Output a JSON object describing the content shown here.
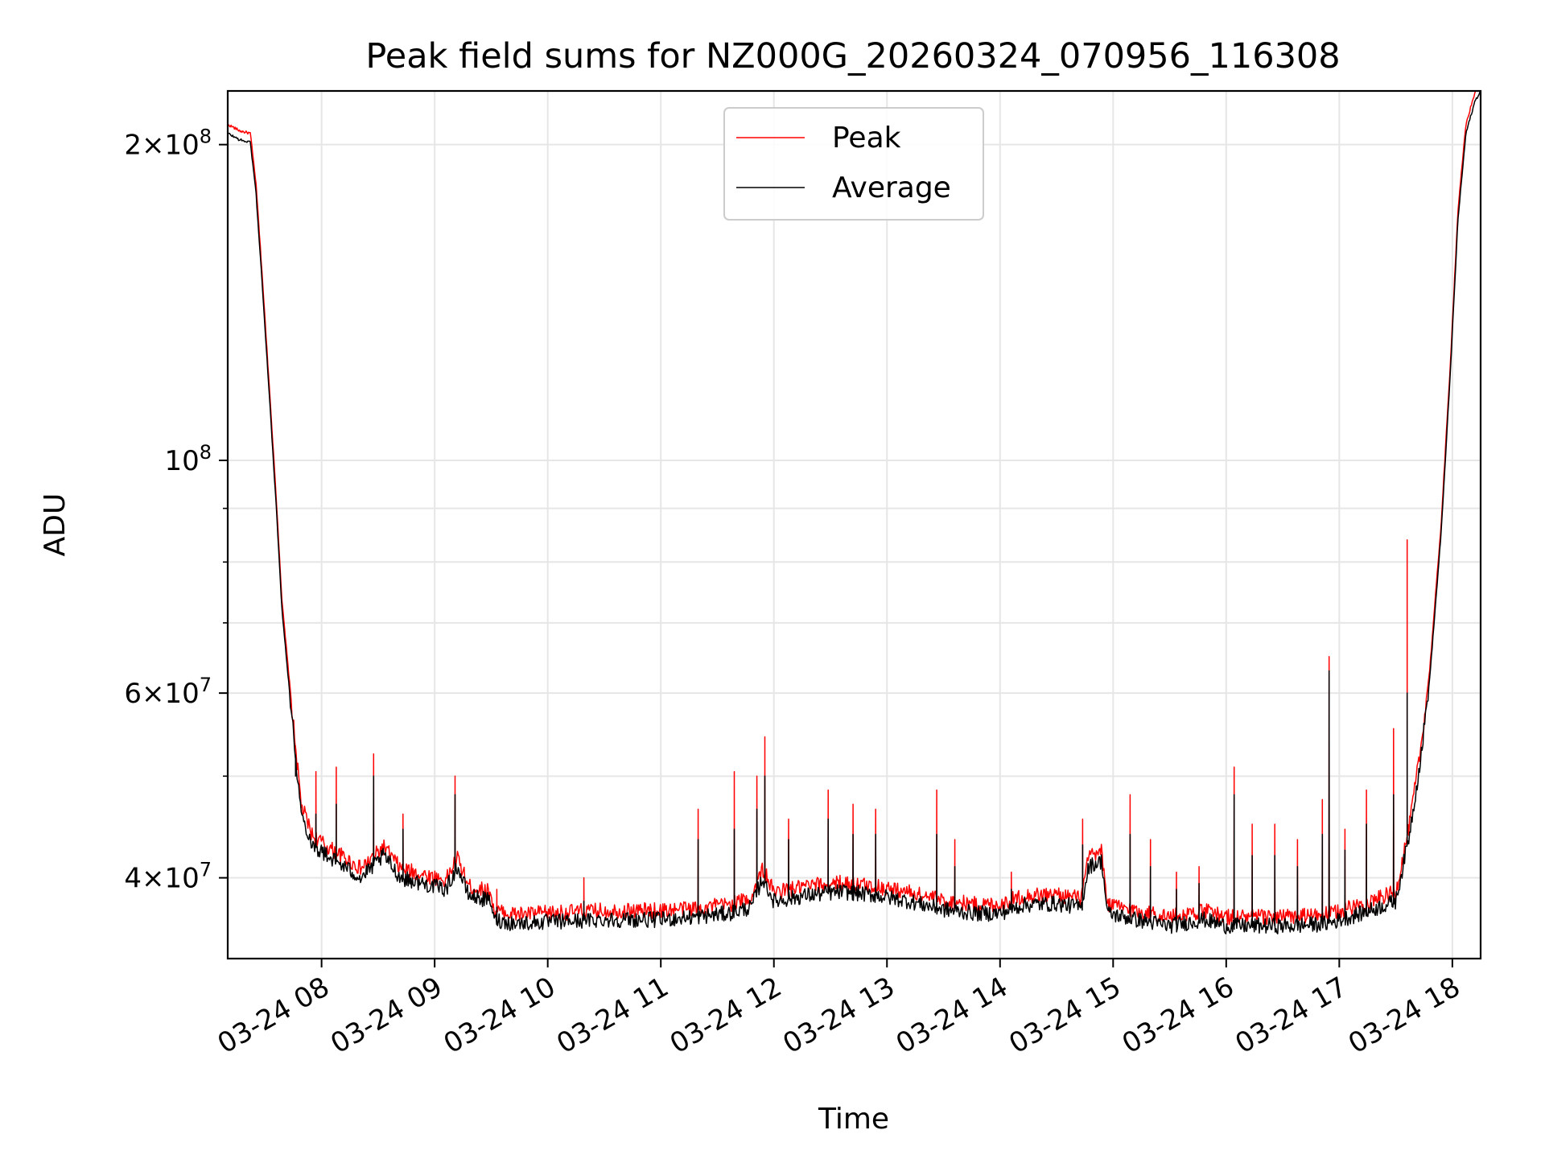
{
  "chart_data": {
    "type": "line",
    "title": "Peak field sums for NZ000G_20260324_070956_116308",
    "xlabel": "Time",
    "ylabel": "ADU",
    "yscale": "log",
    "xlim_hours": [
      7.17,
      18.25
    ],
    "ylim": [
      33500000,
      225000000
    ],
    "grid": true,
    "legend_position": "top-center",
    "x_tick_labels": [
      "03-24 08",
      "03-24 09",
      "03-24 10",
      "03-24 11",
      "03-24 12",
      "03-24 13",
      "03-24 14",
      "03-24 15",
      "03-24 16",
      "03-24 17",
      "03-24 18"
    ],
    "x_tick_hours": [
      8,
      9,
      10,
      11,
      12,
      13,
      14,
      15,
      16,
      17,
      18
    ],
    "y_major_ticks": [
      {
        "value": 40000000,
        "mant": "4",
        "exp": "7"
      },
      {
        "value": 60000000,
        "mant": "6",
        "exp": "7"
      },
      {
        "value": 100000000,
        "mant": "",
        "exp": "8"
      },
      {
        "value": 200000000,
        "mant": "2",
        "exp": "8"
      }
    ],
    "y_minor_ticks": [
      50000000,
      70000000,
      80000000,
      90000000
    ],
    "series": [
      {
        "name": "Peak",
        "color": "#ff0000",
        "baseline_offset": 0.02,
        "spikes": [
          [
            7.77,
            52000000
          ],
          [
            7.95,
            50500000
          ],
          [
            8.13,
            51000000
          ],
          [
            8.46,
            52500000
          ],
          [
            8.72,
            46000000
          ],
          [
            9.18,
            50000000
          ],
          [
            9.55,
            39000000
          ],
          [
            10.32,
            40000000
          ],
          [
            11.33,
            46500000
          ],
          [
            11.65,
            50500000
          ],
          [
            11.85,
            50000000
          ],
          [
            11.92,
            54500000
          ],
          [
            12.13,
            45500000
          ],
          [
            12.48,
            48500000
          ],
          [
            12.7,
            47000000
          ],
          [
            12.9,
            46500000
          ],
          [
            13.44,
            48500000
          ],
          [
            13.6,
            43500000
          ],
          [
            14.1,
            40500000
          ],
          [
            14.73,
            45500000
          ],
          [
            15.15,
            48000000
          ],
          [
            15.33,
            43500000
          ],
          [
            15.56,
            40500000
          ],
          [
            15.76,
            41000000
          ],
          [
            16.07,
            51000000
          ],
          [
            16.23,
            45000000
          ],
          [
            16.43,
            45000000
          ],
          [
            16.63,
            43500000
          ],
          [
            16.85,
            47500000
          ],
          [
            16.91,
            65000000
          ],
          [
            17.05,
            44500000
          ],
          [
            17.24,
            48500000
          ],
          [
            17.48,
            55500000
          ],
          [
            17.6,
            84000000
          ]
        ]
      },
      {
        "name": "Average",
        "color": "#000000",
        "baseline_offset": 0,
        "profile": [
          [
            7.17,
            205000000
          ],
          [
            7.28,
            202000000
          ],
          [
            7.37,
            201000000
          ],
          [
            7.42,
            180000000
          ],
          [
            7.47,
            150000000
          ],
          [
            7.55,
            110000000
          ],
          [
            7.6,
            90000000
          ],
          [
            7.65,
            72000000
          ],
          [
            7.7,
            63000000
          ],
          [
            7.75,
            55000000
          ],
          [
            7.82,
            46000000
          ],
          [
            7.92,
            43000000
          ],
          [
            8.05,
            42000000
          ],
          [
            8.2,
            41000000
          ],
          [
            8.35,
            40000000
          ],
          [
            8.55,
            42000000
          ],
          [
            8.7,
            40000000
          ],
          [
            8.9,
            39500000
          ],
          [
            9.1,
            39000000
          ],
          [
            9.2,
            41000000
          ],
          [
            9.3,
            38500000
          ],
          [
            9.5,
            38000000
          ],
          [
            9.52,
            36500000
          ],
          [
            9.7,
            36200000
          ],
          [
            10.0,
            36300000
          ],
          [
            10.5,
            36500000
          ],
          [
            11.0,
            36500000
          ],
          [
            11.3,
            36700000
          ],
          [
            11.6,
            37000000
          ],
          [
            11.8,
            37500000
          ],
          [
            11.9,
            40000000
          ],
          [
            12.0,
            38000000
          ],
          [
            12.3,
            38500000
          ],
          [
            12.6,
            38800000
          ],
          [
            12.9,
            38500000
          ],
          [
            13.2,
            38000000
          ],
          [
            13.5,
            37300000
          ],
          [
            13.8,
            37000000
          ],
          [
            14.0,
            37000000
          ],
          [
            14.2,
            37700000
          ],
          [
            14.5,
            37800000
          ],
          [
            14.72,
            37500000
          ],
          [
            14.78,
            41000000
          ],
          [
            14.9,
            41500000
          ],
          [
            14.95,
            37000000
          ],
          [
            15.2,
            36500000
          ],
          [
            15.5,
            36000000
          ],
          [
            15.8,
            36500000
          ],
          [
            16.0,
            36000000
          ],
          [
            16.3,
            36000000
          ],
          [
            16.6,
            36000000
          ],
          [
            16.9,
            36200000
          ],
          [
            17.2,
            37000000
          ],
          [
            17.5,
            38000000
          ],
          [
            17.62,
            44000000
          ],
          [
            17.72,
            52000000
          ],
          [
            17.8,
            62000000
          ],
          [
            17.9,
            85000000
          ],
          [
            17.98,
            120000000
          ],
          [
            18.05,
            170000000
          ],
          [
            18.12,
            205000000
          ],
          [
            18.2,
            220000000
          ],
          [
            18.25,
            225000000
          ]
        ],
        "spikes": [
          [
            7.77,
            50000000
          ],
          [
            7.95,
            46000000
          ],
          [
            8.13,
            47000000
          ],
          [
            8.46,
            50000000
          ],
          [
            8.72,
            44500000
          ],
          [
            9.18,
            48000000
          ],
          [
            9.55,
            37500000
          ],
          [
            10.32,
            38000000
          ],
          [
            11.33,
            43500000
          ],
          [
            11.65,
            44500000
          ],
          [
            11.85,
            46500000
          ],
          [
            11.92,
            50000000
          ],
          [
            12.13,
            43500000
          ],
          [
            12.48,
            45500000
          ],
          [
            12.7,
            44000000
          ],
          [
            12.9,
            44000000
          ],
          [
            13.44,
            44000000
          ],
          [
            13.6,
            41000000
          ],
          [
            14.1,
            39000000
          ],
          [
            14.73,
            43000000
          ],
          [
            15.15,
            44000000
          ],
          [
            15.33,
            41000000
          ],
          [
            15.56,
            39000000
          ],
          [
            15.76,
            39500000
          ],
          [
            16.07,
            48000000
          ],
          [
            16.23,
            42000000
          ],
          [
            16.43,
            42000000
          ],
          [
            16.63,
            41000000
          ],
          [
            16.85,
            44000000
          ],
          [
            16.91,
            63000000
          ],
          [
            17.05,
            42500000
          ],
          [
            17.24,
            45000000
          ],
          [
            17.48,
            48000000
          ],
          [
            17.6,
            60000000
          ]
        ]
      }
    ]
  }
}
